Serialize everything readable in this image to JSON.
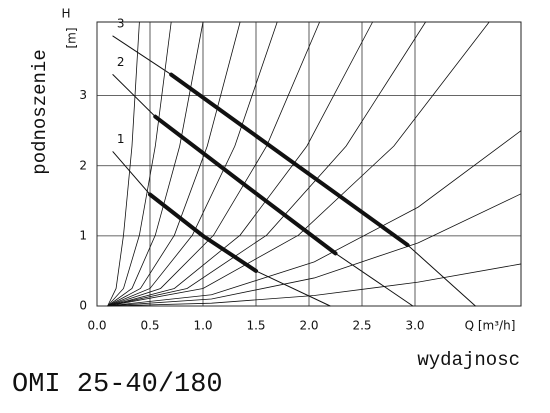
{
  "chart_data": {
    "type": "line",
    "title": "OMI 25-40/180",
    "ylabel": "podnoszenie",
    "ylabel_unit_symbol": "H",
    "ylabel_unit": "[m]",
    "xlabel": "wydajnosc",
    "xlabel_unit": "Q [m³/h]",
    "xlim": [
      0,
      4
    ],
    "ylim": [
      0,
      4.05
    ],
    "xticks": [
      {
        "value": 0,
        "label": "0.0"
      },
      {
        "value": 0.5,
        "label": "0.5"
      },
      {
        "value": 1,
        "label": "1.0"
      },
      {
        "value": 1.5,
        "label": "1.5"
      },
      {
        "value": 2,
        "label": "2.0"
      },
      {
        "value": 2.5,
        "label": "2.5"
      },
      {
        "value": 3,
        "label": "3.0"
      }
    ],
    "yticks": [
      0,
      1,
      2,
      3
    ],
    "grid": true,
    "color": "#111111",
    "series": [
      {
        "name": "1",
        "kind": "pump",
        "x": [
          0.15,
          0.5,
          1.0,
          1.5,
          2.2
        ],
        "values": [
          2.2,
          1.59,
          1.0,
          0.5,
          0
        ]
      },
      {
        "name": "2",
        "kind": "pump",
        "x": [
          0.15,
          0.55,
          1.4,
          2.25,
          2.98
        ],
        "values": [
          3.3,
          2.7,
          1.72,
          0.75,
          0
        ]
      },
      {
        "name": "3",
        "kind": "pump",
        "x": [
          0.15,
          0.7,
          1.8,
          2.93,
          3.57
        ],
        "values": [
          3.85,
          3.3,
          2.1,
          0.87,
          0
        ]
      },
      {
        "kind": "operating",
        "x": [
          0.5,
          1.0,
          1.5
        ],
        "values": [
          1.59,
          1.0,
          0.5
        ]
      },
      {
        "kind": "operating",
        "x": [
          0.55,
          1.4,
          2.25
        ],
        "values": [
          2.7,
          1.72,
          0.75
        ]
      },
      {
        "kind": "operating",
        "x": [
          0.7,
          1.8,
          2.93
        ],
        "values": [
          3.3,
          2.1,
          0.87
        ]
      },
      {
        "kind": "system",
        "x": [
          0.1,
          0.18,
          0.25,
          0.33,
          0.4
        ],
        "values": [
          0,
          0.25,
          1.01,
          2.28,
          4.05
        ]
      },
      {
        "kind": "system",
        "x": [
          0.1,
          0.25,
          0.4,
          0.55,
          0.7
        ],
        "values": [
          0,
          0.25,
          1.01,
          2.28,
          4.05
        ]
      },
      {
        "kind": "system",
        "x": [
          0.1,
          0.33,
          0.55,
          0.78,
          1.0
        ],
        "values": [
          0,
          0.25,
          1.01,
          2.28,
          4.05
        ]
      },
      {
        "kind": "system",
        "x": [
          0.1,
          0.41,
          0.73,
          1.04,
          1.35
        ],
        "values": [
          0,
          0.25,
          1.01,
          2.28,
          4.05
        ]
      },
      {
        "kind": "system",
        "x": [
          0.1,
          0.5,
          0.9,
          1.3,
          1.7
        ],
        "values": [
          0,
          0.25,
          1.01,
          2.28,
          4.05
        ]
      },
      {
        "kind": "system",
        "x": [
          0.1,
          0.6,
          1.1,
          1.6,
          2.1
        ],
        "values": [
          0,
          0.25,
          1.01,
          2.28,
          4.05
        ]
      },
      {
        "kind": "system",
        "x": [
          0.1,
          0.73,
          1.35,
          1.98,
          2.6
        ],
        "values": [
          0,
          0.25,
          1.01,
          2.28,
          4.05
        ]
      },
      {
        "kind": "system",
        "x": [
          0.1,
          0.85,
          1.6,
          2.35,
          3.1
        ],
        "values": [
          0,
          0.25,
          1.01,
          2.28,
          4.05
        ]
      },
      {
        "kind": "system",
        "x": [
          0.1,
          1.0,
          1.9,
          2.8,
          3.7
        ],
        "values": [
          0,
          0.25,
          1.01,
          2.28,
          4.05
        ]
      },
      {
        "kind": "system",
        "x": [
          0.1,
          1.08,
          2.05,
          3.03,
          4.0
        ],
        "values": [
          0,
          0.16,
          0.63,
          1.41,
          2.5
        ]
      },
      {
        "kind": "system",
        "x": [
          0.1,
          1.08,
          2.05,
          3.03,
          4.0
        ],
        "values": [
          0,
          0.1,
          0.4,
          0.9,
          1.6
        ]
      },
      {
        "kind": "system",
        "x": [
          0.1,
          1.08,
          2.05,
          3.03,
          4.0
        ],
        "values": [
          0,
          0.04,
          0.15,
          0.34,
          0.6
        ]
      }
    ]
  }
}
